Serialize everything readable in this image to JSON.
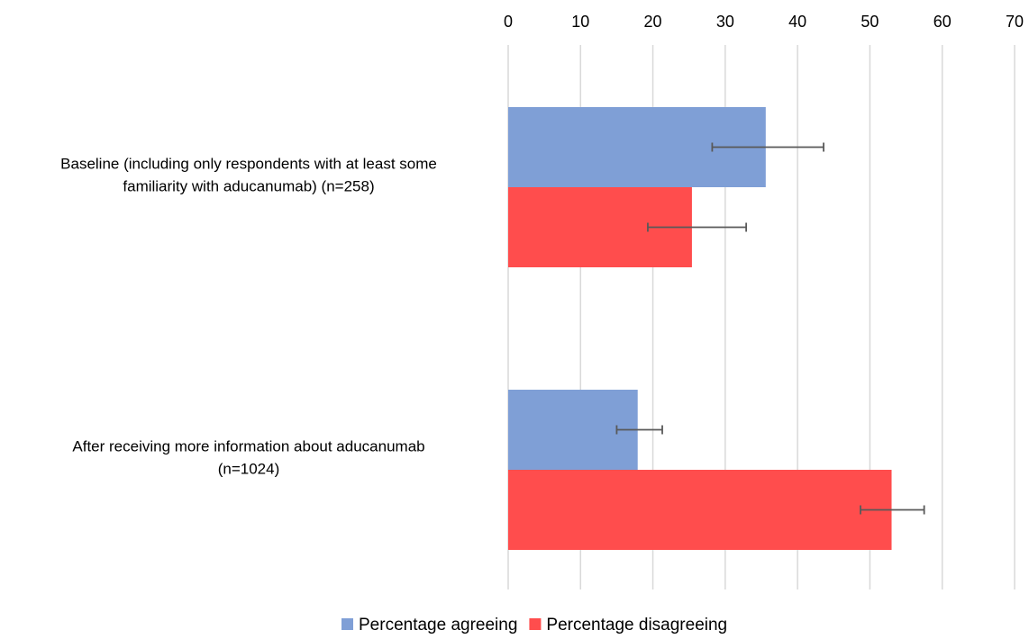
{
  "chart_data": {
    "type": "bar",
    "orientation": "horizontal",
    "categories": [
      "Baseline (including only respondents with at least some familiarity with aducanumab) (n=258)",
      "After receiving more information about aducanumab (n=1024)"
    ],
    "category_label_lines": [
      [
        "Baseline (including only respondents with at least some",
        "familiarity with aducanumab) (n=258)"
      ],
      [
        "After receiving more information about aducanumab",
        "(n=1024)"
      ]
    ],
    "series": [
      {
        "name": "Percentage agreeing",
        "color": "#7f9fd6",
        "values": [
          35.6,
          17.9
        ],
        "error_low": [
          28.2,
          15.0
        ],
        "error_high": [
          43.6,
          21.3
        ]
      },
      {
        "name": "Percentage disagreeing",
        "color": "#ff4d4d",
        "values": [
          25.4,
          53.0
        ],
        "error_low": [
          19.3,
          48.7
        ],
        "error_high": [
          32.9,
          57.5
        ]
      }
    ],
    "xlim": [
      0,
      70
    ],
    "xticks": [
      "0",
      "10",
      "20",
      "30",
      "40",
      "50",
      "60",
      "70"
    ],
    "x_axis_position": "top",
    "grid": true,
    "legend_position": "bottom",
    "title": "",
    "xlabel": "",
    "ylabel": ""
  }
}
